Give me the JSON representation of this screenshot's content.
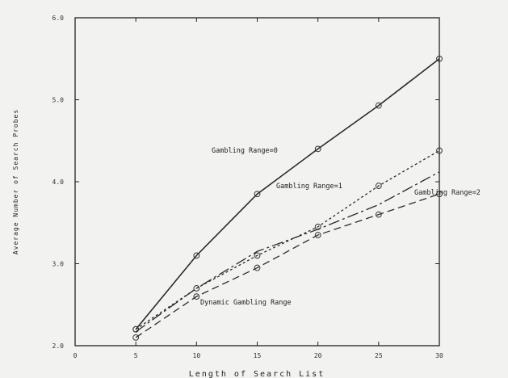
{
  "chart_data": {
    "type": "line",
    "xlabel": "Length of Search List",
    "ylabel": "Average Number of Search Probes",
    "xlim": [
      0,
      30
    ],
    "ylim": [
      2.0,
      6.0
    ],
    "x_ticks": [
      "0",
      "5",
      "10",
      "15",
      "20",
      "25",
      "30"
    ],
    "y_ticks": [
      "2.0",
      "3.0",
      "4.0",
      "5.0",
      "6.0"
    ],
    "grid": false,
    "series": [
      {
        "name": "Gambling Range=0",
        "style": "solid",
        "marker": true,
        "x": [
          5,
          10,
          15,
          20,
          25,
          30
        ],
        "y": [
          2.2,
          3.1,
          3.85,
          4.4,
          4.93,
          5.5
        ]
      },
      {
        "name": "Gambling Range=1",
        "style": "dotted",
        "marker": true,
        "x": [
          5,
          10,
          15,
          20,
          25,
          30
        ],
        "y": [
          2.2,
          2.7,
          3.1,
          3.45,
          3.95,
          4.38
        ]
      },
      {
        "name": "Gambling Range=2",
        "style": "dashdot",
        "marker": false,
        "x": [
          5,
          10,
          15,
          20,
          25,
          30
        ],
        "y": [
          2.17,
          2.7,
          3.15,
          3.42,
          3.72,
          4.12
        ]
      },
      {
        "name": "Dynamic Gambling Range",
        "style": "dashed",
        "marker": true,
        "x": [
          5,
          10,
          15,
          20,
          25,
          30
        ],
        "y": [
          2.1,
          2.6,
          2.95,
          3.35,
          3.6,
          3.85
        ]
      }
    ],
    "annotations": [
      {
        "text": "Gambling Range=0",
        "series": 0
      },
      {
        "text": "Gambling Range=1",
        "series": 1
      },
      {
        "text": "Gambling Range=2",
        "series": 2
      },
      {
        "text": "Dynamic Gambling Range",
        "series": 3
      }
    ]
  }
}
